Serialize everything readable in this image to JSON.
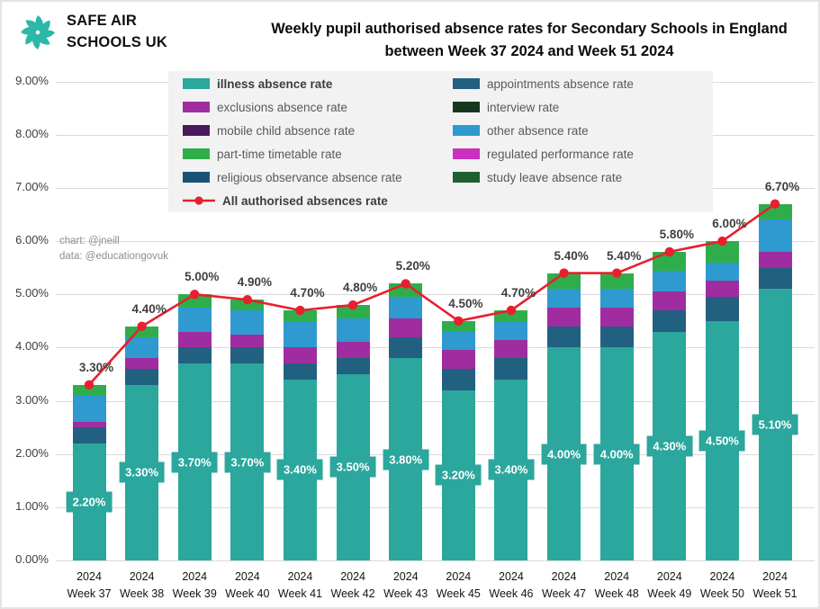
{
  "header": {
    "logo_line1": "SAFE AIR",
    "logo_line2": "SCHOOLS UK",
    "title_line1": "Weekly pupil authorised absence rates for Secondary Schools in England",
    "title_line2": "between Week 37 2024 and Week 51 2024"
  },
  "credits": {
    "line1": "chart: @jneill",
    "line2": "data: @educationgovuk"
  },
  "colors": {
    "logo_teal": "#2cb8a8",
    "illness_teal": "#2ba79d",
    "line_red": "#e8202e",
    "legend_bg": "#f2f2f2",
    "gridline": "#d9d9d9"
  },
  "legend": {
    "columns": [
      {
        "items": [
          {
            "label": "illness absence rate",
            "color": "#2ba79d",
            "bold": true,
            "type": "swatch"
          },
          {
            "label": "exclusions absence rate",
            "color": "#9f2d9f",
            "bold": false,
            "type": "swatch"
          },
          {
            "label": "mobile child absence rate",
            "color": "#4a1a5c",
            "bold": false,
            "type": "swatch"
          },
          {
            "label": "part-time timetable rate",
            "color": "#2fad4a",
            "bold": false,
            "type": "swatch"
          },
          {
            "label": "religious observance absence rate",
            "color": "#1a5276",
            "bold": false,
            "type": "swatch"
          },
          {
            "label": "All authorised absences rate",
            "color": "#e8202e",
            "bold": true,
            "type": "line"
          }
        ]
      },
      {
        "items": [
          {
            "label": "appointments absence rate",
            "color": "#226080",
            "bold": false,
            "type": "swatch"
          },
          {
            "label": "interview rate",
            "color": "#17381f",
            "bold": false,
            "type": "swatch"
          },
          {
            "label": "other absence rate",
            "color": "#2e9ad0",
            "bold": false,
            "type": "swatch"
          },
          {
            "label": "regulated performance rate",
            "color": "#cb2fc0",
            "bold": false,
            "type": "swatch"
          },
          {
            "label": "study leave absence rate",
            "color": "#206030",
            "bold": false,
            "type": "swatch"
          }
        ]
      }
    ]
  },
  "chart_data": {
    "type": "bar",
    "stacked": true,
    "grid": true,
    "ylim": [
      0,
      9
    ],
    "ytick_labels": [
      "0.00%",
      "1.00%",
      "2.00%",
      "3.00%",
      "4.00%",
      "5.00%",
      "6.00%",
      "7.00%",
      "8.00%",
      "9.00%"
    ],
    "year_label": "2024",
    "categories": [
      "Week 37",
      "Week 38",
      "Week 39",
      "Week 40",
      "Week 41",
      "Week 42",
      "Week 43",
      "Week 45",
      "Week 46",
      "Week 47",
      "Week 48",
      "Week 49",
      "Week 50",
      "Week 51"
    ],
    "series": [
      {
        "name": "illness absence rate",
        "color": "#2ba79d",
        "values": [
          2.2,
          3.3,
          3.7,
          3.7,
          3.4,
          3.5,
          3.8,
          3.2,
          3.4,
          4.0,
          4.0,
          4.3,
          4.5,
          5.1
        ]
      },
      {
        "name": "appointments absence rate",
        "color": "#226080",
        "values": [
          0.3,
          0.3,
          0.3,
          0.3,
          0.3,
          0.3,
          0.4,
          0.4,
          0.4,
          0.4,
          0.4,
          0.4,
          0.45,
          0.4
        ]
      },
      {
        "name": "exclusions absence rate",
        "color": "#9f2d9f",
        "values": [
          0.1,
          0.2,
          0.3,
          0.25,
          0.3,
          0.3,
          0.35,
          0.35,
          0.35,
          0.35,
          0.35,
          0.35,
          0.3,
          0.3
        ]
      },
      {
        "name": "interview rate",
        "color": "#17381f",
        "values": [
          0,
          0,
          0,
          0,
          0,
          0,
          0,
          0,
          0,
          0,
          0,
          0,
          0,
          0
        ]
      },
      {
        "name": "mobile child absence rate",
        "color": "#4a1a5c",
        "values": [
          0,
          0,
          0,
          0,
          0,
          0,
          0,
          0,
          0,
          0,
          0,
          0,
          0,
          0
        ]
      },
      {
        "name": "other absence rate",
        "color": "#2e9ad0",
        "values": [
          0.5,
          0.4,
          0.45,
          0.45,
          0.5,
          0.45,
          0.4,
          0.35,
          0.35,
          0.35,
          0.35,
          0.4,
          0.35,
          0.6
        ]
      },
      {
        "name": "part-time timetable rate",
        "color": "#2fad4a",
        "values": [
          0.2,
          0.2,
          0.25,
          0.2,
          0.2,
          0.25,
          0.25,
          0.2,
          0.2,
          0.3,
          0.3,
          0.35,
          0.4,
          0.3
        ]
      },
      {
        "name": "regulated performance rate",
        "color": "#cb2fc0",
        "values": [
          0,
          0,
          0,
          0,
          0,
          0,
          0,
          0,
          0,
          0,
          0,
          0,
          0,
          0
        ]
      },
      {
        "name": "religious observance absence rate",
        "color": "#1a5276",
        "values": [
          0,
          0,
          0,
          0,
          0,
          0,
          0,
          0,
          0,
          0,
          0,
          0,
          0,
          0
        ]
      },
      {
        "name": "study leave absence rate",
        "color": "#206030",
        "values": [
          0,
          0,
          0,
          0,
          0,
          0,
          0,
          0,
          0,
          0,
          0,
          0,
          0,
          0
        ]
      }
    ],
    "line_series": {
      "name": "All authorised absences rate",
      "color": "#e8202e",
      "values": [
        3.3,
        4.4,
        5.0,
        4.9,
        4.7,
        4.8,
        5.2,
        4.5,
        4.7,
        5.4,
        5.4,
        5.8,
        6.0,
        6.7
      ]
    },
    "total_labels": [
      "3.30%",
      "4.40%",
      "5.00%",
      "4.90%",
      "4.70%",
      "4.80%",
      "5.20%",
      "4.50%",
      "4.70%",
      "5.40%",
      "5.40%",
      "5.80%",
      "6.00%",
      "6.70%"
    ],
    "bar_labels": {
      "series": "illness absence rate",
      "values": [
        "2.20%",
        "3.30%",
        "3.70%",
        "3.70%",
        "3.40%",
        "3.50%",
        "3.80%",
        "3.20%",
        "3.40%",
        "4.00%",
        "4.00%",
        "4.30%",
        "4.50%",
        "5.10%"
      ]
    }
  }
}
